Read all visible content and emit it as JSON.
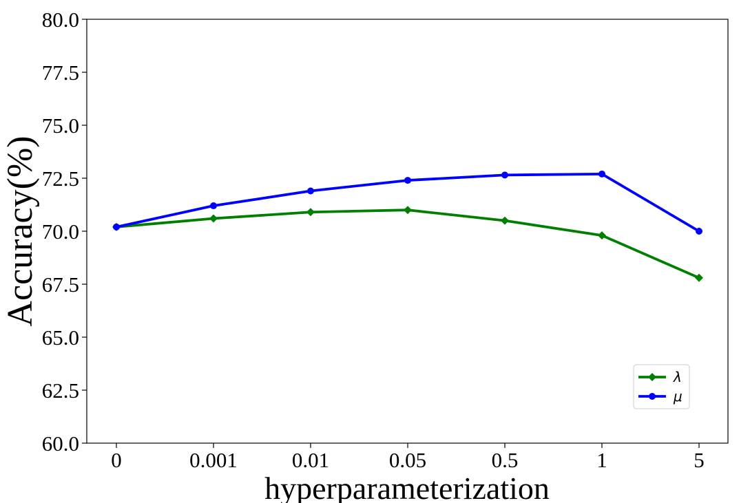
{
  "chart_data": {
    "type": "line",
    "categories": [
      "0",
      "0.001",
      "0.01",
      "0.05",
      "0.5",
      "1",
      "5"
    ],
    "series": [
      {
        "name": "λ",
        "values": [
          70.2,
          70.6,
          70.9,
          71.0,
          70.5,
          69.8,
          67.8
        ],
        "color": "#008000",
        "marker": "diamond"
      },
      {
        "name": "μ",
        "values": [
          70.2,
          71.2,
          71.9,
          72.4,
          72.65,
          72.7,
          70.0
        ],
        "color": "#0000ff",
        "marker": "circle"
      }
    ],
    "xlabel": "hyperparameterization",
    "ylabel": "Accuracy(%)",
    "ylim": [
      60.0,
      80.0
    ],
    "yticks": [
      "60.0",
      "62.5",
      "65.0",
      "67.5",
      "70.0",
      "72.5",
      "75.0",
      "77.5",
      "80.0"
    ],
    "grid": false,
    "legend_position": "lower-right"
  }
}
